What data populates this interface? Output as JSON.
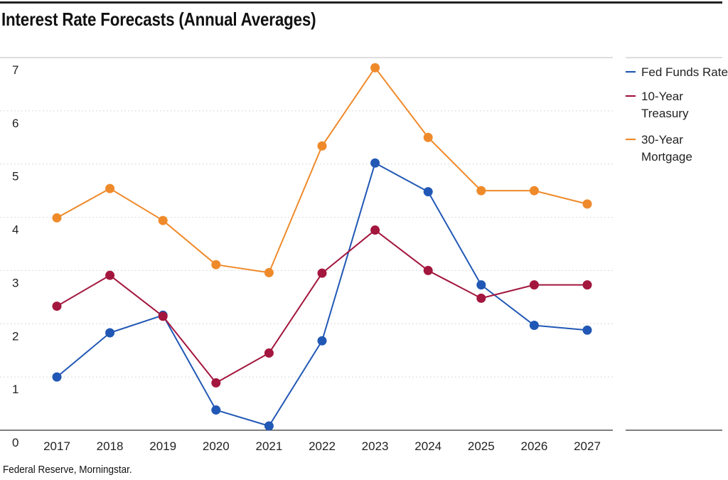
{
  "chart_data": {
    "type": "line",
    "title": "Interest Rate Forecasts (Annual Averages)",
    "source": "Federal Reserve, Morningstar.",
    "xlabel": "",
    "ylabel": "",
    "categories": [
      "2017",
      "2018",
      "2019",
      "2020",
      "2021",
      "2022",
      "2023",
      "2024",
      "2025",
      "2026",
      "2027"
    ],
    "yticks": [
      0,
      1,
      2,
      3,
      4,
      5,
      6,
      7
    ],
    "ylim": [
      0,
      7
    ],
    "grid": true,
    "legend_position": "right",
    "series": [
      {
        "name": "Fed Funds Rate",
        "legend_lines": [
          "Fed Funds Rate"
        ],
        "color": "#2158b5",
        "values": [
          1.0,
          1.83,
          2.16,
          0.38,
          0.08,
          1.68,
          5.02,
          4.48,
          2.73,
          1.97,
          1.88
        ]
      },
      {
        "name": "10-Year Treasury",
        "legend_lines": [
          "10-Year",
          "Treasury"
        ],
        "color": "#a3163e",
        "values": [
          2.33,
          2.91,
          2.14,
          0.89,
          1.45,
          2.95,
          3.76,
          3.0,
          2.48,
          2.73,
          2.73
        ]
      },
      {
        "name": "30-Year Mortgage",
        "legend_lines": [
          "30-Year",
          "Mortgage"
        ],
        "color": "#ef8a2a",
        "values": [
          3.99,
          4.54,
          3.94,
          3.11,
          2.96,
          5.34,
          6.81,
          5.5,
          4.5,
          4.5,
          4.25
        ]
      }
    ]
  }
}
